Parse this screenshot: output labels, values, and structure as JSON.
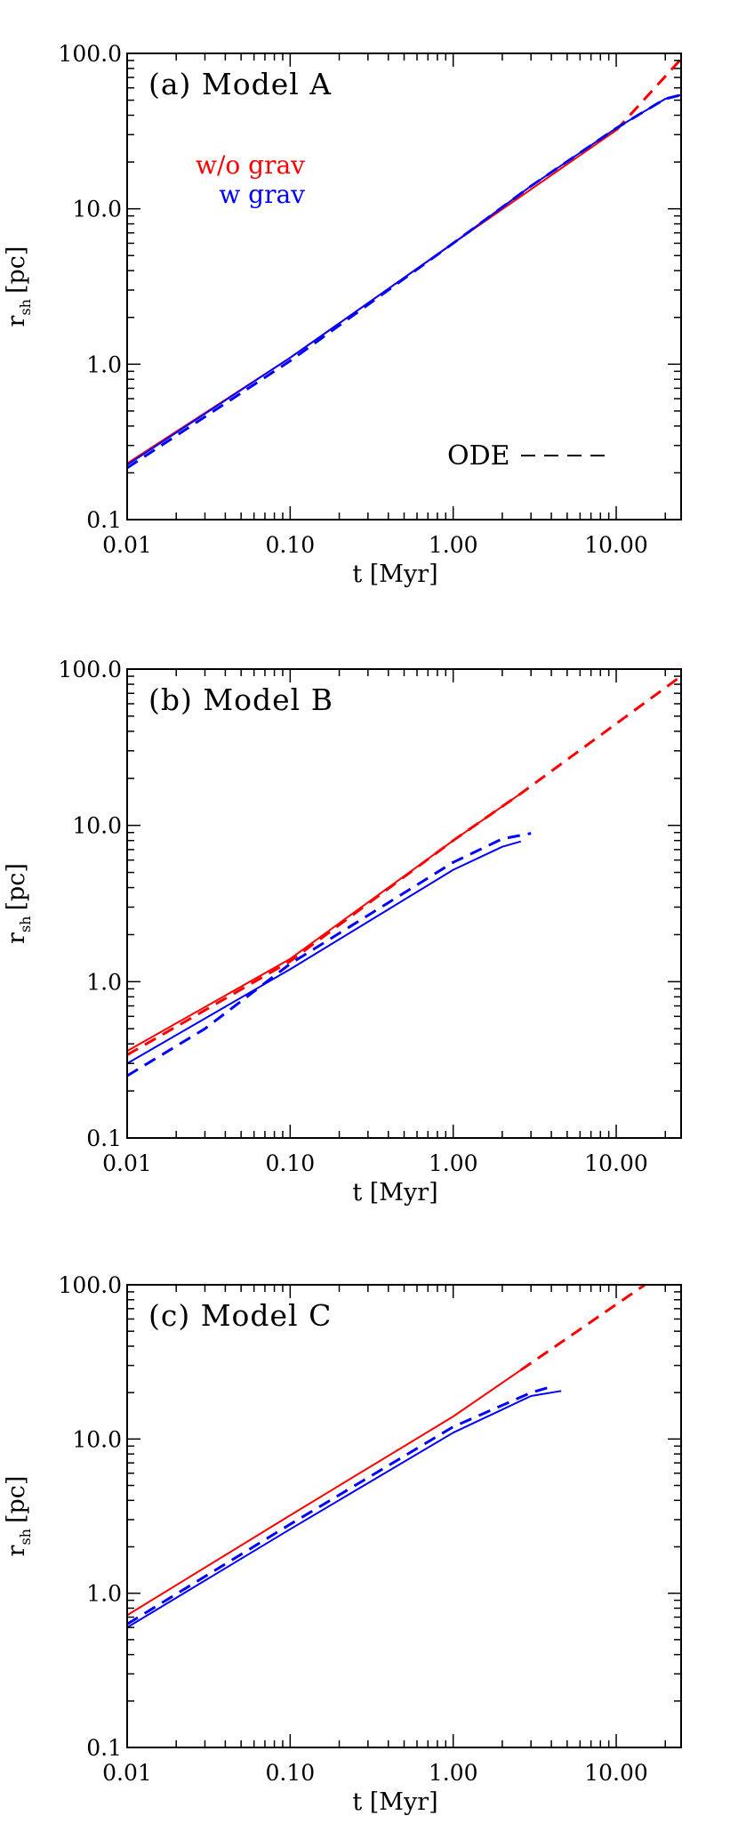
{
  "colors": {
    "red": "#ff0000",
    "blue": "#0000ff",
    "axis": "#000000"
  },
  "chart_data": [
    {
      "type": "line",
      "title": "(a) Model A",
      "xlabel": "t [Myr]",
      "ylabel": "r",
      "ylabel_sub": "sh",
      "ylabel_unit": "[pc]",
      "xscale": "log",
      "yscale": "log",
      "xlim": [
        0.01,
        25
      ],
      "ylim": [
        0.1,
        100
      ],
      "xticks": [
        0.01,
        0.1,
        1,
        10
      ],
      "xticklabels": [
        "0.01",
        "0.10",
        "1.00",
        "10.00"
      ],
      "yticks": [
        0.1,
        1,
        10,
        100
      ],
      "yticklabels": [
        "0.1",
        "1.0",
        "10.0",
        "100.0"
      ],
      "legend": {
        "placement": "top-left",
        "entries": [
          {
            "text": "w/o grav",
            "color": "red"
          },
          {
            "text": "w grav",
            "color": "blue"
          }
        ]
      },
      "ode_label": {
        "text": "ODE",
        "placement": "bottom-right"
      },
      "series": [
        {
          "color": "red",
          "style": "solid",
          "x": [
            0.01,
            0.1,
            1,
            10
          ],
          "y": [
            0.23,
            1.1,
            6.0,
            32
          ]
        },
        {
          "color": "red",
          "style": "dashed",
          "x": [
            10,
            25
          ],
          "y": [
            32,
            92
          ]
        },
        {
          "color": "blue",
          "style": "solid",
          "x": [
            0.01,
            0.1,
            1,
            3,
            10,
            20,
            25
          ],
          "y": [
            0.225,
            1.1,
            6.0,
            14,
            33,
            51,
            54
          ]
        },
        {
          "color": "blue",
          "style": "dashed",
          "x": [
            0.01,
            0.1,
            1,
            3,
            10,
            20,
            25
          ],
          "y": [
            0.215,
            1.05,
            6.0,
            14,
            33,
            51,
            54
          ]
        }
      ]
    },
    {
      "type": "line",
      "title": "(b) Model B",
      "xlabel": "t [Myr]",
      "ylabel": "r",
      "ylabel_sub": "sh",
      "ylabel_unit": "[pc]",
      "xscale": "log",
      "yscale": "log",
      "xlim": [
        0.01,
        25
      ],
      "ylim": [
        0.1,
        100
      ],
      "xticks": [
        0.01,
        0.1,
        1,
        10
      ],
      "xticklabels": [
        "0.01",
        "0.10",
        "1.00",
        "10.00"
      ],
      "yticks": [
        0.1,
        1,
        10,
        100
      ],
      "yticklabels": [
        "0.1",
        "1.0",
        "10.0",
        "100.0"
      ],
      "series": [
        {
          "color": "red",
          "style": "solid",
          "x": [
            0.01,
            0.1,
            1,
            2.6
          ],
          "y": [
            0.36,
            1.4,
            8.0,
            16
          ]
        },
        {
          "color": "red",
          "style": "dashed",
          "x": [
            0.01,
            0.1,
            1,
            2.6,
            25
          ],
          "y": [
            0.34,
            1.35,
            8.0,
            16,
            90
          ]
        },
        {
          "color": "blue",
          "style": "solid",
          "x": [
            0.01,
            0.1,
            1,
            2.0,
            2.6
          ],
          "y": [
            0.3,
            1.2,
            5.2,
            7.3,
            7.9
          ]
        },
        {
          "color": "blue",
          "style": "dashed",
          "x": [
            0.01,
            0.03,
            0.1,
            1,
            2.0,
            3.0
          ],
          "y": [
            0.25,
            0.5,
            1.3,
            5.8,
            8.2,
            8.9
          ]
        }
      ]
    },
    {
      "type": "line",
      "title": "(c) Model C",
      "xlabel": "t [Myr]",
      "ylabel": "r",
      "ylabel_sub": "sh",
      "ylabel_unit": "[pc]",
      "xscale": "log",
      "yscale": "log",
      "xlim": [
        0.01,
        25
      ],
      "ylim": [
        0.1,
        100
      ],
      "xticks": [
        0.01,
        0.1,
        1,
        10
      ],
      "xticklabels": [
        "0.01",
        "0.10",
        "1.00",
        "10.00"
      ],
      "yticks": [
        0.1,
        1,
        10,
        100
      ],
      "yticklabels": [
        "0.1",
        "1.0",
        "10.0",
        "100.0"
      ],
      "series": [
        {
          "color": "red",
          "style": "solid",
          "x": [
            0.01,
            0.1,
            1,
            2.6
          ],
          "y": [
            0.72,
            3.2,
            14,
            28
          ]
        },
        {
          "color": "red",
          "style": "dashed",
          "x": [
            2.6,
            15
          ],
          "y": [
            28,
            100
          ]
        },
        {
          "color": "blue",
          "style": "solid",
          "x": [
            0.01,
            0.1,
            1,
            3,
            4.6
          ],
          "y": [
            0.6,
            2.6,
            11,
            19,
            20.5
          ]
        },
        {
          "color": "blue",
          "style": "dashed",
          "x": [
            0.01,
            0.1,
            1,
            3,
            3.8
          ],
          "y": [
            0.63,
            2.8,
            12,
            20,
            21.5
          ]
        }
      ]
    }
  ]
}
